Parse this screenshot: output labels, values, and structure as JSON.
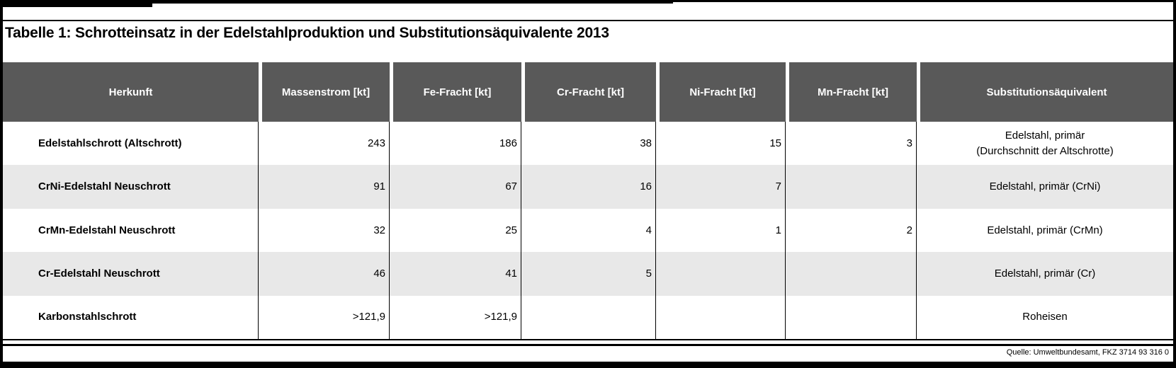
{
  "page": {
    "title": "Tabelle 1: Schrotteinsatz in der Edelstahlproduktion und Substitutionsäquivalente 2013",
    "source_note": "Quelle: Umweltbundesamt, FKZ  3714 93 316 0"
  },
  "colors": {
    "header_bg": "#595959",
    "header_text": "#ffffff",
    "alt_row_bg": "#e8e8e8",
    "frame": "#000000"
  },
  "table": {
    "header": [
      "Herkunft",
      "Massenstrom [kt]",
      "Fe-Fracht [kt]",
      "Cr-Fracht [kt]",
      "Ni-Fracht [kt]",
      "Mn-Fracht [kt]",
      "Substitutionsäquivalent"
    ],
    "rows": [
      {
        "cells": [
          "Edelstahlschrott (Altschrott)",
          "243",
          "186",
          "38",
          "15",
          "3",
          "Edelstahl, primär\n(Durchschnitt der Altschrotte)"
        ]
      },
      {
        "cells": [
          "CrNi-Edelstahl Neuschrott",
          "91",
          "67",
          "16",
          "7",
          "",
          "Edelstahl, primär (CrNi)"
        ]
      },
      {
        "cells": [
          "CrMn-Edelstahl Neuschrott",
          "32",
          "25",
          "4",
          "1",
          "2",
          "Edelstahl, primär (CrMn)"
        ]
      },
      {
        "cells": [
          "Cr-Edelstahl Neuschrott",
          "46",
          "41",
          "5",
          "",
          "",
          "Edelstahl, primär (Cr)"
        ]
      },
      {
        "cells": [
          "Karbonstahlschrott",
          ">121,9",
          ">121,9",
          "",
          "",
          "",
          "Roheisen"
        ]
      }
    ]
  },
  "chart_data": {
    "type": "table",
    "title": "Tabelle 1: Schrotteinsatz in der Edelstahlproduktion und Substitutionsäquivalente 2013",
    "columns": [
      "Herkunft",
      "Massenstrom [kt]",
      "Fe-Fracht [kt]",
      "Cr-Fracht [kt]",
      "Ni-Fracht [kt]",
      "Mn-Fracht [kt]",
      "Substitutionsäquivalent"
    ],
    "rows": [
      [
        "Edelstahlschrott (Altschrott)",
        243,
        186,
        38,
        15,
        3,
        "Edelstahl, primär (Durchschnitt der Altschrotte)"
      ],
      [
        "CrNi-Edelstahl Neuschrott",
        91,
        67,
        16,
        7,
        null,
        "Edelstahl, primär (CrNi)"
      ],
      [
        "CrMn-Edelstahl Neuschrott",
        32,
        25,
        4,
        1,
        2,
        "Edelstahl, primär (CrMn)"
      ],
      [
        "Cr-Edelstahl Neuschrott",
        46,
        41,
        5,
        null,
        null,
        "Edelstahl, primär (Cr)"
      ],
      [
        "Karbonstahlschrott",
        ">121,9",
        ">121,9",
        null,
        null,
        null,
        "Roheisen"
      ]
    ],
    "source": "Quelle: Umweltbundesamt, FKZ  3714 93 316 0"
  }
}
